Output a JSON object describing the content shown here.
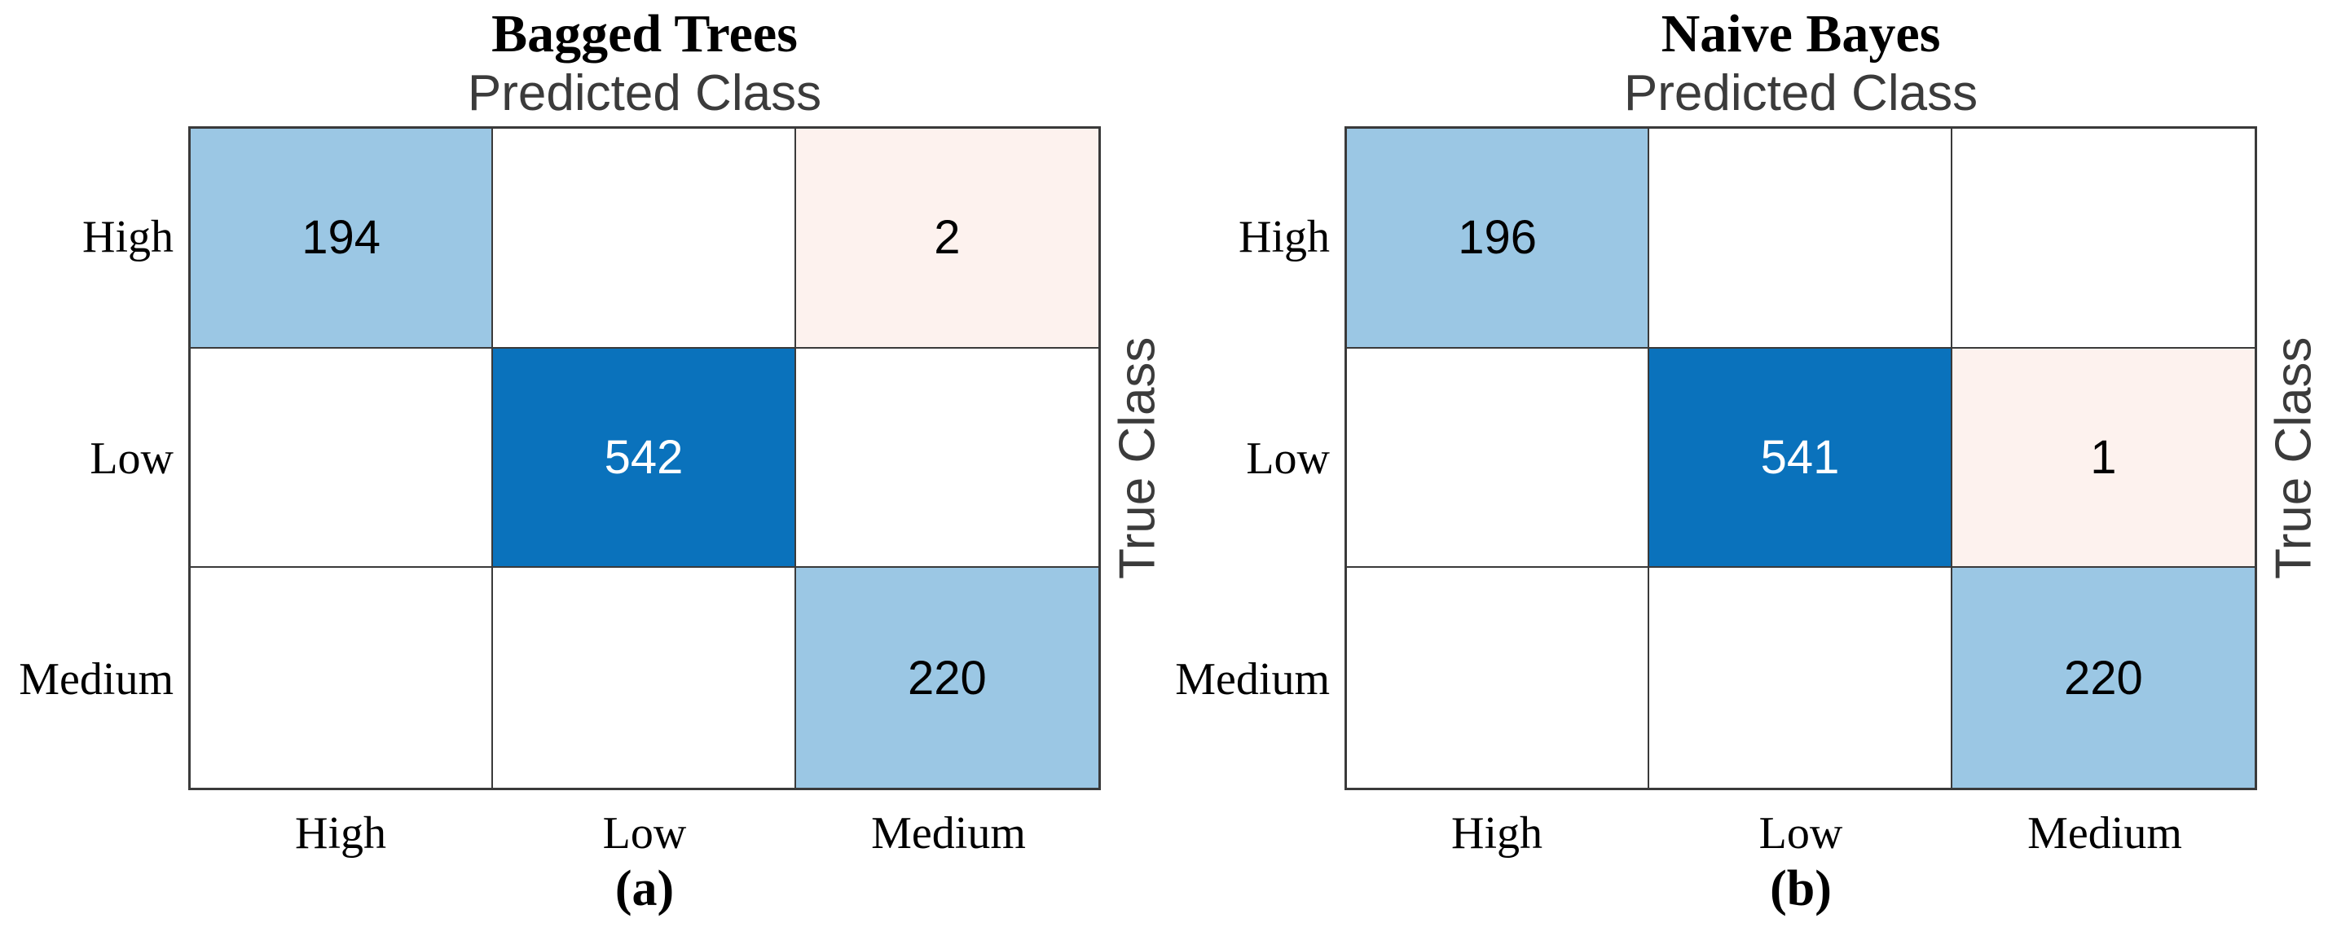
{
  "figure": {
    "predicted_class_label": "Predicted Class",
    "true_class_label": "True Class",
    "classes": [
      "High",
      "Low",
      "Medium"
    ],
    "panels": [
      {
        "title": "Bagged Trees",
        "caption": "(a)",
        "matrix": [
          [
            "194",
            null,
            "2"
          ],
          [
            null,
            "542",
            null
          ],
          [
            null,
            null,
            "220"
          ]
        ],
        "fills": [
          [
            "diag_light",
            "empty",
            "offdiag_light"
          ],
          [
            "empty",
            "diag_strong",
            "empty"
          ],
          [
            "empty",
            "empty",
            "diag_light"
          ]
        ]
      },
      {
        "title": "Naive Bayes",
        "caption": "(b)",
        "matrix": [
          [
            "196",
            null,
            null
          ],
          [
            null,
            "541",
            "1"
          ],
          [
            null,
            null,
            "220"
          ]
        ],
        "fills": [
          [
            "diag_light",
            "empty",
            "empty"
          ],
          [
            "empty",
            "diag_strong",
            "offdiag_light"
          ],
          [
            "empty",
            "empty",
            "diag_light"
          ]
        ]
      }
    ]
  },
  "colors": {
    "diag_light": "#9BC7E4",
    "diag_strong": "#0A72BC",
    "offdiag_light": "#FDF2EE",
    "empty": "#FFFFFF",
    "grid_line": "#3A3A3A",
    "axis_title_gray": "#3B3B3B",
    "cell_text_dark": "#000000",
    "cell_text_light": "#FFFFFF"
  },
  "chart_data": [
    {
      "type": "heatmap",
      "title": "Bagged Trees",
      "caption": "(a)",
      "xlabel": "Predicted Class",
      "ylabel": "True Class",
      "x_categories": [
        "High",
        "Low",
        "Medium"
      ],
      "y_categories": [
        "High",
        "Low",
        "Medium"
      ],
      "values": [
        [
          194,
          0,
          2
        ],
        [
          0,
          542,
          0
        ],
        [
          0,
          0,
          220
        ]
      ],
      "legend_position": "none",
      "grid": true
    },
    {
      "type": "heatmap",
      "title": "Naive Bayes",
      "caption": "(b)",
      "xlabel": "Predicted Class",
      "ylabel": "True Class",
      "x_categories": [
        "High",
        "Low",
        "Medium"
      ],
      "y_categories": [
        "High",
        "Low",
        "Medium"
      ],
      "values": [
        [
          196,
          0,
          0
        ],
        [
          0,
          541,
          1
        ],
        [
          0,
          0,
          220
        ]
      ],
      "legend_position": "none",
      "grid": true
    }
  ]
}
